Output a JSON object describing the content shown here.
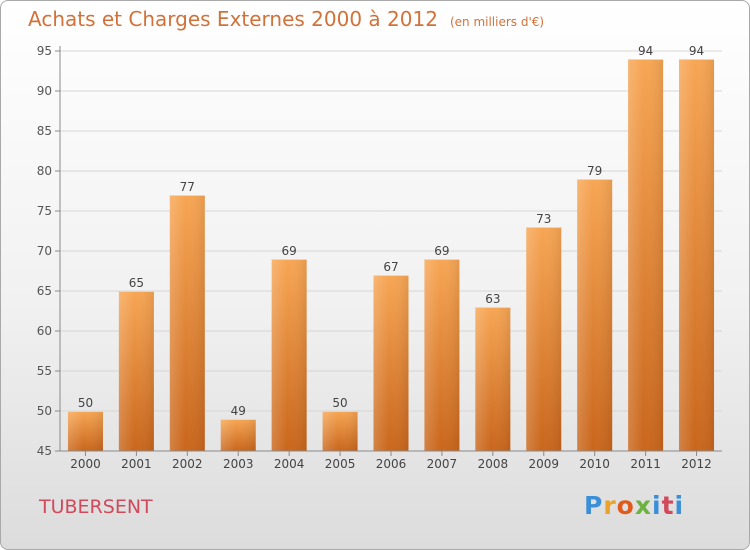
{
  "title": "Achats et Charges Externes 2000 à 2012",
  "subtitle": "(en milliers d'€)",
  "place": "TUBERSENT",
  "logo": "Proxiti",
  "colors": {
    "title": "#d1723a",
    "place": "#d1495b",
    "bar_top": "#f7a654",
    "bar_bottom": "#c9661c",
    "axis": "#8a8a8a",
    "grid": "#d6d6d6"
  },
  "chart_data": {
    "type": "bar",
    "title": "Achats et Charges Externes 2000 à 2012",
    "subtitle": "(en milliers d'€)",
    "categories": [
      "2000",
      "2001",
      "2002",
      "2003",
      "2004",
      "2005",
      "2006",
      "2007",
      "2008",
      "2009",
      "2010",
      "2011",
      "2012"
    ],
    "values": [
      50,
      65,
      77,
      49,
      69,
      50,
      67,
      69,
      63,
      73,
      79,
      94,
      94
    ],
    "ylim": [
      45,
      95
    ],
    "yticks": [
      45,
      50,
      55,
      60,
      65,
      70,
      75,
      80,
      85,
      90,
      95
    ],
    "grid": true,
    "xlabel": "",
    "ylabel": ""
  }
}
